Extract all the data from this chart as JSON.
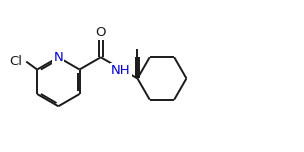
{
  "bg_color": "#ffffff",
  "bond_color": "#1a1a1a",
  "n_color": "#0000cd",
  "line_width": 1.4,
  "font_size": 9.5,
  "fig_width": 3.04,
  "fig_height": 1.52,
  "dpi": 100,
  "xlim": [
    0.0,
    10.5
  ],
  "ylim": [
    0.5,
    5.5
  ]
}
